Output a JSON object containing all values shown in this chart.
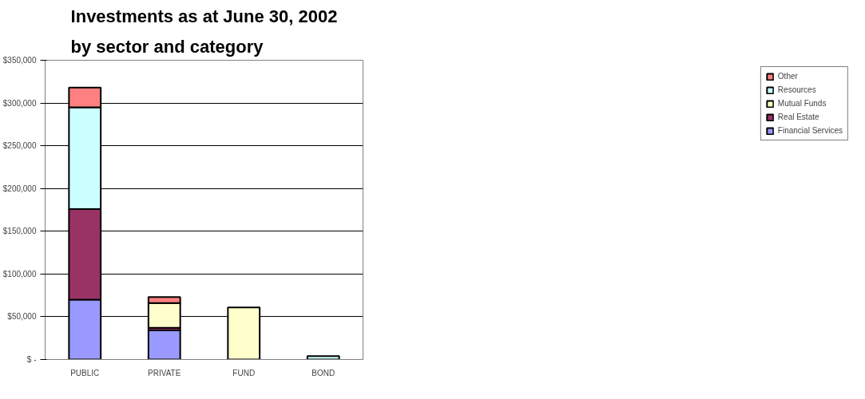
{
  "chart_data": {
    "type": "bar",
    "title": "Investments as at June 30, 2002\nby sector and category",
    "categories": [
      "PUBLIC",
      "PRIVATE",
      "FUND",
      "BOND"
    ],
    "stacked": true,
    "series": [
      {
        "name": "Financial Services",
        "color": "#9999ff",
        "values": [
          70000,
          34000,
          0,
          0
        ]
      },
      {
        "name": "Real Estate",
        "color": "#993366",
        "values": [
          106000,
          3000,
          0,
          0
        ]
      },
      {
        "name": "Mutual Funds",
        "color": "#ffffcc",
        "values": [
          0,
          29000,
          61000,
          0
        ]
      },
      {
        "name": "Resources",
        "color": "#ccffff",
        "values": [
          119000,
          0,
          0,
          4000
        ]
      },
      {
        "name": "Other",
        "color": "#ff8080",
        "values": [
          23000,
          7000,
          0,
          0
        ]
      }
    ],
    "ylim": [
      0,
      350000
    ],
    "yticks": [
      {
        "value": 0,
        "label": "$ -"
      },
      {
        "value": 50000,
        "label": "$50,000"
      },
      {
        "value": 100000,
        "label": "$100,000"
      },
      {
        "value": 150000,
        "label": "$150,000"
      },
      {
        "value": 200000,
        "label": "$200,000"
      },
      {
        "value": 250000,
        "label": "$250,000"
      },
      {
        "value": 300000,
        "label": "$300,000"
      },
      {
        "value": 350000,
        "label": "$350,000"
      }
    ],
    "grid": "y",
    "legend": "right"
  }
}
